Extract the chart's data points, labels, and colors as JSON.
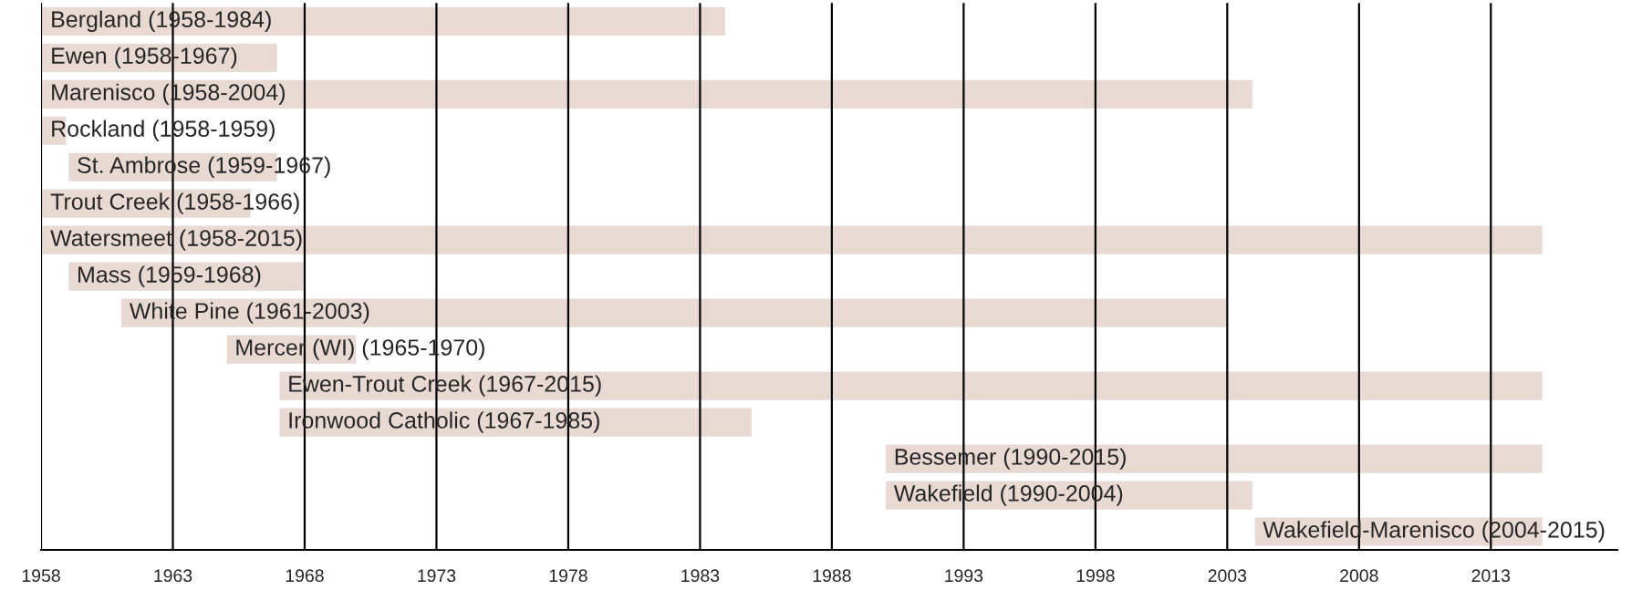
{
  "chart_data": {
    "type": "bar",
    "orientation": "horizontal",
    "color": "#e9d9d3",
    "categories": [
      "Bergland (1958-1984)",
      "Ewen (1958-1967)",
      "Marenisco (1958-2004)",
      "Rockland (1958-1959)",
      "St. Ambrose (1959-1967)",
      "Trout Creek (1958-1966)",
      "Watersmeet (1958-2015)",
      "Mass (1959-1968)",
      "White Pine (1961-2003)",
      "Mercer (WI) (1965-1970)",
      "Ewen-Trout Creek (1967-2015)",
      "Ironwood Catholic (1967-1985)",
      "Bessemer (1990-2015)",
      "Wakefield (1990-2004)",
      "Wakefield-Marenisco (2004-2015)"
    ],
    "base": [
      1958,
      1958,
      1958,
      1958,
      1959,
      1958,
      1958,
      1959,
      1961,
      1965,
      1967,
      1967,
      1990,
      1990,
      2004
    ],
    "values": [
      26,
      9,
      46,
      1,
      8,
      8,
      57,
      9,
      42,
      5,
      48,
      18,
      25,
      14,
      11
    ],
    "xlim": [
      1958,
      2017.8
    ],
    "xticks": [
      1958,
      1963,
      1968,
      1973,
      1978,
      1983,
      1988,
      1993,
      1998,
      2003,
      2008,
      2013
    ],
    "grid": "x"
  }
}
